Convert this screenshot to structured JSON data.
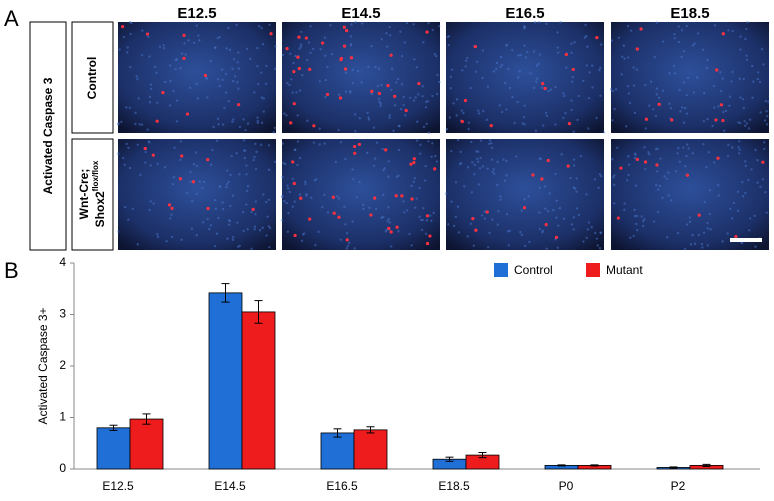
{
  "panel_a": {
    "label": "A",
    "columns": [
      "E12.5",
      "E14.5",
      "E16.5",
      "E18.5"
    ],
    "group_label": "Activated Caspase 3",
    "rows": [
      {
        "line1": "Control"
      },
      {
        "line1": "Wnt-Cre;",
        "line2": "Shox2",
        "sup": "flox/flox"
      }
    ]
  },
  "chart_data": {
    "type": "bar",
    "panel_label": "B",
    "ylabel": "Activated Caspase 3+",
    "categories": [
      "E12.5",
      "E14.5",
      "E16.5",
      "E18.5",
      "P0",
      "P2"
    ],
    "series": [
      {
        "name": "Control",
        "color": "#1f6fd6",
        "values": [
          0.8,
          3.42,
          0.7,
          0.19,
          0.07,
          0.03
        ],
        "errors": [
          0.05,
          0.18,
          0.08,
          0.04,
          0.01,
          0.01
        ]
      },
      {
        "name": "Mutant",
        "color": "#ee1c1c",
        "values": [
          0.97,
          3.05,
          0.76,
          0.27,
          0.07,
          0.07
        ],
        "errors": [
          0.1,
          0.22,
          0.06,
          0.05,
          0.01,
          0.02
        ]
      }
    ],
    "ylim": [
      0,
      4
    ],
    "yticks": [
      0,
      1,
      2,
      3,
      4
    ],
    "legend": "top-right"
  }
}
